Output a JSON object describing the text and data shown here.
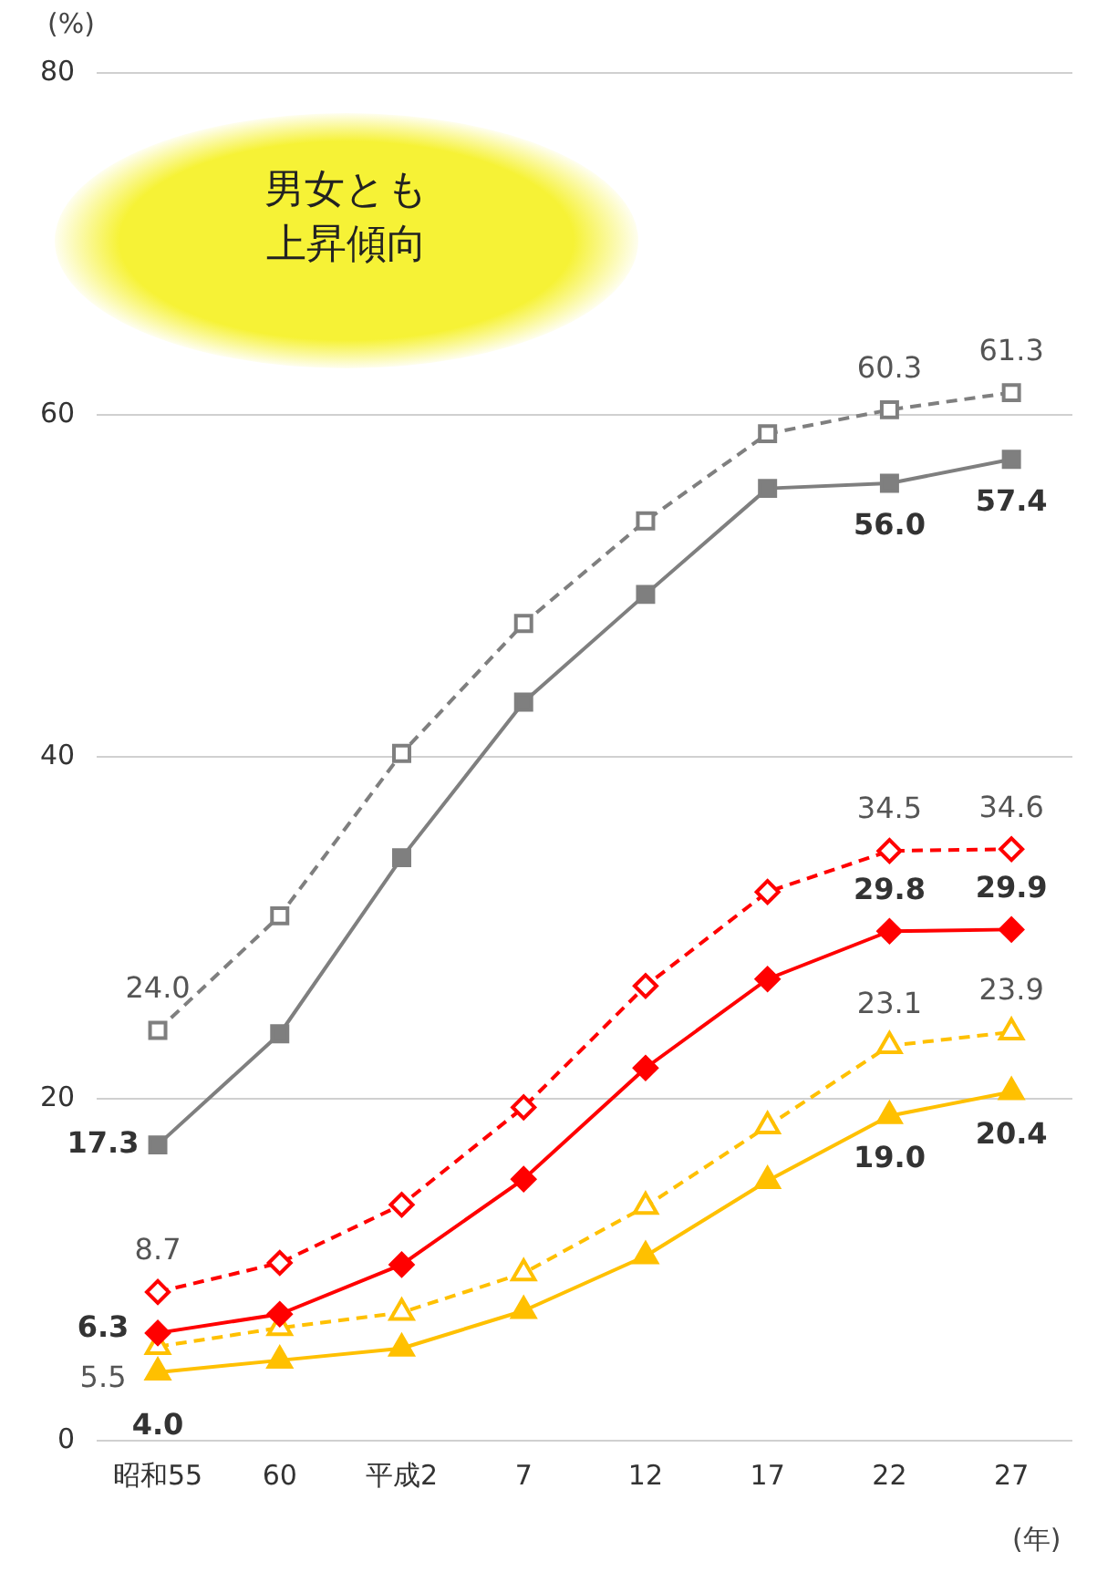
{
  "chart_data": {
    "type": "line",
    "categories": [
      "昭和55",
      "60",
      "平成2",
      "7",
      "12",
      "17",
      "22",
      "27"
    ],
    "ylabel": "(%)",
    "xlabel": "(年)",
    "ylim": [
      0,
      80
    ],
    "yticks": [
      0,
      20,
      40,
      60,
      80
    ],
    "grid": "y",
    "legend": false,
    "annotations": [
      "男女とも上昇傾向"
    ],
    "series": [
      {
        "color": "#7f7f7f",
        "line_style": "dashed",
        "marker": "square",
        "values": [
          24.0,
          30.7,
          40.2,
          47.8,
          53.8,
          58.9,
          60.3,
          61.3
        ],
        "value_labels": [
          "24.0",
          null,
          null,
          null,
          null,
          null,
          "60.3",
          "61.3"
        ]
      },
      {
        "color": "#7f7f7f",
        "line_style": "solid",
        "marker": "square",
        "values": [
          17.3,
          23.8,
          34.1,
          43.2,
          49.5,
          55.7,
          56.0,
          57.4
        ],
        "value_labels": [
          "17.3",
          null,
          null,
          null,
          null,
          null,
          "56.0",
          "57.4"
        ]
      },
      {
        "color": "#ff0000",
        "line_style": "dashed",
        "marker": "diamond",
        "values": [
          8.7,
          10.4,
          13.8,
          19.5,
          26.6,
          32.1,
          34.5,
          34.6
        ],
        "value_labels": [
          "8.7",
          null,
          null,
          null,
          null,
          null,
          "34.5",
          "34.6"
        ]
      },
      {
        "color": "#ff0000",
        "line_style": "solid",
        "marker": "diamond",
        "values": [
          6.3,
          7.4,
          10.3,
          15.3,
          21.8,
          27.0,
          29.8,
          29.9
        ],
        "value_labels": [
          "6.3",
          null,
          null,
          null,
          null,
          null,
          "29.8",
          "29.9"
        ]
      },
      {
        "color": "#ffc000",
        "line_style": "dashed",
        "marker": "triangle",
        "values": [
          5.5,
          6.6,
          7.5,
          9.8,
          13.7,
          18.4,
          23.1,
          23.9
        ],
        "value_labels": [
          "5.5",
          null,
          null,
          null,
          null,
          null,
          "23.1",
          "23.9"
        ]
      },
      {
        "color": "#ffc000",
        "line_style": "solid",
        "marker": "triangle",
        "values": [
          4.0,
          4.7,
          5.4,
          7.6,
          10.8,
          15.2,
          19.0,
          20.4
        ],
        "value_labels": [
          "4.0",
          null,
          null,
          null,
          null,
          null,
          "19.0",
          "20.4"
        ]
      }
    ]
  }
}
